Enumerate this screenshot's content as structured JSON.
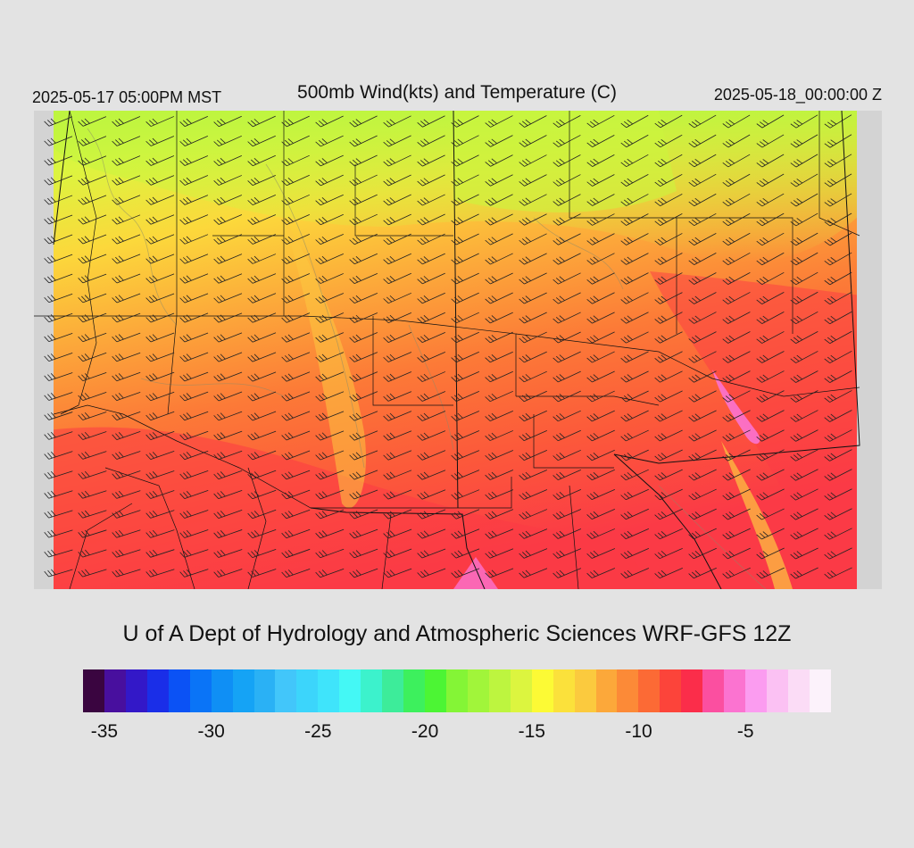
{
  "header": {
    "left": "2025-05-17 05:00PM MST",
    "center": "500mb Wind(kts) and Temperature (C)",
    "right": "2025-05-18_00:00:00 Z"
  },
  "credit": "U of A Dept of Hydrology and Atmospheric Sciences WRF-GFS 12Z",
  "colorbar": {
    "min": -36,
    "max": -1,
    "step": 1,
    "colors": [
      "#3a0540",
      "#480f9e",
      "#3318c8",
      "#1a2ee8",
      "#0b52f5",
      "#0a74f7",
      "#0f8ff5",
      "#15a3f5",
      "#2ab1f5",
      "#42c6fa",
      "#3cd5fb",
      "#3fe4fb",
      "#44f8f5",
      "#3cf2cc",
      "#3dec9a",
      "#3df05d",
      "#4cf534",
      "#84f536",
      "#a1f53a",
      "#bdf53f",
      "#dcf53f",
      "#fcfa35",
      "#fbe13b",
      "#fbca3e",
      "#fca83a",
      "#fc8a37",
      "#fc6a35",
      "#fc443a",
      "#fb2d4a",
      "#fb4fa0",
      "#fb73d0",
      "#fb9cf0",
      "#fbc1f3",
      "#fbdcf6",
      "#fcf2fb"
    ],
    "tick_labels": [
      {
        "value": -35,
        "label": "-35"
      },
      {
        "value": -30,
        "label": "-30"
      },
      {
        "value": -25,
        "label": "-25"
      },
      {
        "value": -20,
        "label": "-20"
      },
      {
        "value": -15,
        "label": "-15"
      },
      {
        "value": -10,
        "label": "-10"
      },
      {
        "value": -5,
        "label": "-5"
      }
    ]
  },
  "map": {
    "field": "500mb temperature (C) with wind barbs (kts)",
    "temperature_range_shown": [
      -21,
      -4
    ],
    "dominant_wind_direction": "southwest",
    "colors": {
      "background_gray": "#d3d3d3",
      "boundary_black": "#111111",
      "barb_black": "#222222"
    }
  }
}
